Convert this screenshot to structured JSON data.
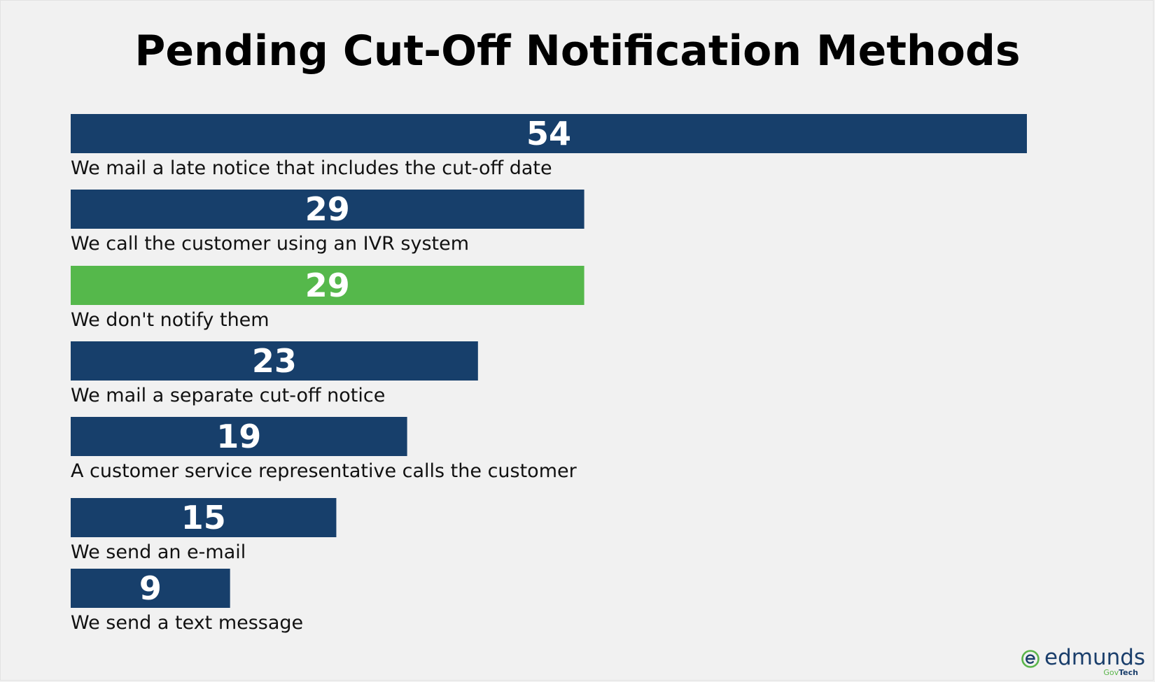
{
  "chart_data": {
    "type": "bar",
    "orientation": "horizontal",
    "title": "Pending Cut-Off Notification Methods",
    "categories": [
      "We mail a late notice that includes the cut-off date",
      "We call the customer using an IVR system",
      "We don't notify them",
      "We mail a separate cut-off notice",
      "A customer service representative calls the customer",
      "We send an e-mail",
      "We send a text message"
    ],
    "values": [
      54,
      29,
      29,
      23,
      19,
      15,
      9
    ],
    "value_labels": [
      "54",
      "29",
      "29",
      "23",
      "19",
      "15",
      "9"
    ],
    "bar_colors": [
      "#173f6b",
      "#173f6b",
      "#55b84b",
      "#173f6b",
      "#173f6b",
      "#173f6b",
      "#173f6b"
    ],
    "xlim": [
      0,
      54
    ],
    "grid": false,
    "legend": "none",
    "data_labels": "centered-in-bar",
    "category_labels": "below-bar"
  },
  "logo": {
    "word": "edmunds",
    "sub_gov": "Gov",
    "sub_tech": "Tech",
    "mark_color": "#5ab54b",
    "word_color": "#1a3e6b"
  },
  "colors": {
    "background": "#f1f1f1",
    "bar_primary": "#173f6b",
    "bar_highlight": "#55b84b"
  }
}
